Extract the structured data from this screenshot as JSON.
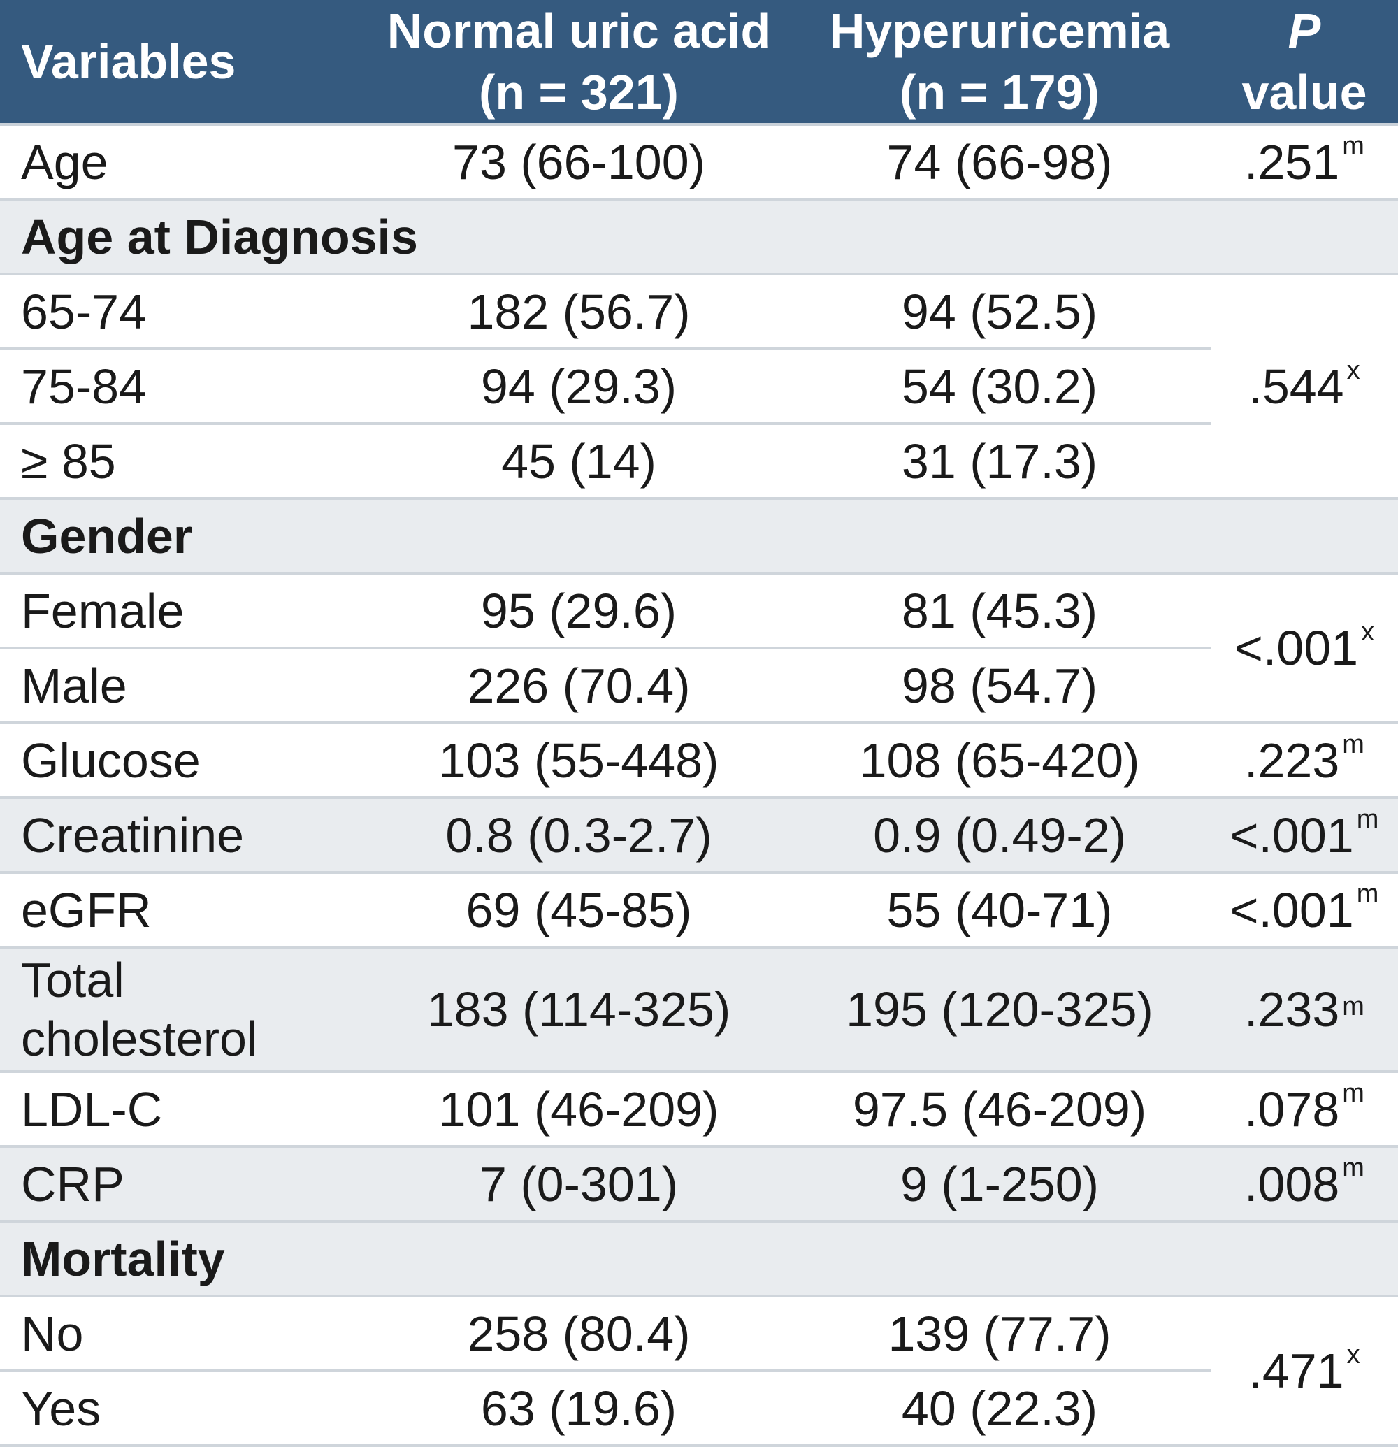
{
  "header": {
    "variables": "Variables",
    "normal_line1": "Normal uric acid",
    "normal_line2": "(n = 321)",
    "hyper_line1": "Hyperuricemia",
    "hyper_line2": "(n = 179)",
    "p_line1": "P",
    "p_line2": "value"
  },
  "rows": {
    "age": {
      "label": "Age",
      "normal": "73 (66-100)",
      "hyper": "74 (66-98)",
      "p": ".251",
      "p_sup": "m"
    },
    "age_dx": {
      "label": "Age at Diagnosis"
    },
    "age_65": {
      "label": "65-74",
      "normal": "182 (56.7)",
      "hyper": "94 (52.5)"
    },
    "age_75": {
      "label": "75-84",
      "normal": "94 (29.3)",
      "hyper": "54 (30.2)"
    },
    "age_85": {
      "label": "≥ 85",
      "normal": "45 (14)",
      "hyper": "31 (17.3)"
    },
    "age_dx_p": {
      "p": ".544",
      "p_sup": "x"
    },
    "gender": {
      "label": "Gender"
    },
    "female": {
      "label": "Female",
      "normal": "95 (29.6)",
      "hyper": "81 (45.3)"
    },
    "male": {
      "label": "Male",
      "normal": "226 (70.4)",
      "hyper": "98 (54.7)"
    },
    "gender_p": {
      "p": "<.001",
      "p_sup": "x"
    },
    "glucose": {
      "label": "Glucose",
      "normal": "103 (55-448)",
      "hyper": "108 (65-420)",
      "p": ".223",
      "p_sup": "m"
    },
    "creatinine": {
      "label": "Creatinine",
      "normal": "0.8 (0.3-2.7)",
      "hyper": "0.9 (0.49-2)",
      "p": "<.001",
      "p_sup": "m"
    },
    "egfr": {
      "label": "eGFR",
      "normal": "69 (45-85)",
      "hyper": "55 (40-71)",
      "p": "<.001",
      "p_sup": "m"
    },
    "tchol": {
      "label_line1": "Total",
      "label_line2": "cholesterol",
      "normal": "183 (114-325)",
      "hyper": "195 (120-325)",
      "p": ".233",
      "p_sup": "m"
    },
    "ldl": {
      "label": "LDL-C",
      "normal": "101 (46-209)",
      "hyper": "97.5 (46-209)",
      "p": ".078",
      "p_sup": "m"
    },
    "crp": {
      "label": "CRP",
      "normal": "7 (0-301)",
      "hyper": "9 (1-250)",
      "p": ".008",
      "p_sup": "m"
    },
    "mortality": {
      "label": "Mortality"
    },
    "no": {
      "label": "No",
      "normal": "258 (80.4)",
      "hyper": "139 (77.7)"
    },
    "yes": {
      "label": "Yes",
      "normal": "63 (19.6)",
      "hyper": "40 (22.3)"
    },
    "mortality_p": {
      "p": ".471",
      "p_sup": "x"
    }
  }
}
